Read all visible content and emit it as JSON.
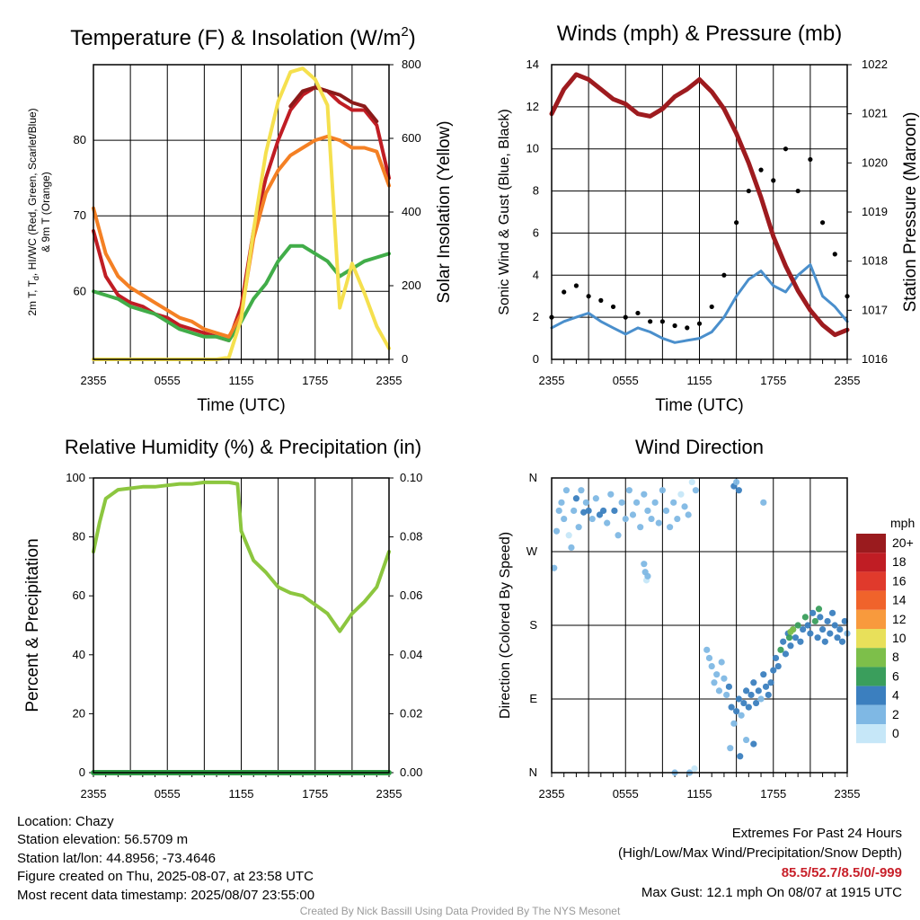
{
  "footer": "Created By Nick Bassill Using Data Provided By The NYS Mesonet",
  "info": {
    "location": "Location: Chazy",
    "elevation": "Station elevation: 56.5709 m",
    "latlon": "Station lat/lon: 44.8956; -73.4646",
    "created": "Figure created on Thu, 2025-08-07, at 23:58 UTC",
    "recent": "Most recent data timestamp: 2025/08/07 23:55:00"
  },
  "extremes": {
    "title": "Extremes For Past 24 Hours",
    "subtitle": "(High/Low/Max Wind/Precipitation/Snow Depth)",
    "values": "85.5/52.7/8.5/0/-999",
    "max_gust": "Max Gust: 12.1 mph On 08/07 at 1915 UTC"
  },
  "colors": {
    "temperature": "#c01d24",
    "heat_index": "#8b1a1a",
    "dewpoint": "#41ad49",
    "temp_9m": "#f48024",
    "insolation": "#f5e04e",
    "wind": "#4a8fcc",
    "gust": "#000000",
    "pressure": "#9e1b1f",
    "humidity": "#8cc63f",
    "precipitation": "#2e9a44"
  },
  "chart_data": [
    {
      "type": "line",
      "id": "temperature",
      "title": "Temperature (F) & Insolation (W/m",
      "title_sup": "2",
      "title_close": ")",
      "xlabel": "Time (UTC)",
      "ylabel_lines": [
        "2m T, T",
        "d",
        ", HI/WC (Red, Green, Scarlet/Blue)",
        "& 9m T (Orange)"
      ],
      "y2label": "Solar Insolation (Yellow)",
      "x_ticks": [
        "2355",
        "0555",
        "1155",
        "1755",
        "2355"
      ],
      "x_hours": [
        0,
        6,
        12,
        18,
        24
      ],
      "ylim": [
        51,
        90
      ],
      "y_ticks": [
        60,
        70,
        80
      ],
      "y2lim": [
        0,
        800
      ],
      "y2_ticks": [
        0,
        200,
        400,
        600,
        800
      ],
      "x": [
        0,
        1,
        2,
        3,
        4,
        5,
        6,
        7,
        8,
        9,
        10,
        11,
        12,
        13,
        14,
        15,
        16,
        17,
        18,
        19,
        20,
        21,
        22,
        23,
        24
      ],
      "series": [
        {
          "name": "2m T",
          "color": "temperature",
          "axis": "left",
          "values": [
            68,
            62,
            59.5,
            58.5,
            58,
            57,
            56.5,
            55.5,
            55,
            54.5,
            54,
            53.5,
            58,
            68,
            75,
            80,
            84,
            86,
            87,
            86.5,
            85,
            84,
            84,
            82,
            75
          ]
        },
        {
          "name": "HI/WC",
          "color": "heat_index",
          "axis": "left",
          "values": [
            null,
            null,
            null,
            null,
            null,
            null,
            null,
            null,
            null,
            null,
            null,
            null,
            null,
            null,
            null,
            null,
            84.5,
            86.5,
            87,
            86.5,
            86,
            85,
            84.5,
            82.5,
            null
          ]
        },
        {
          "name": "Td",
          "color": "dewpoint",
          "axis": "left",
          "values": [
            60,
            59.5,
            59,
            58,
            57.5,
            57,
            56,
            55,
            54.5,
            54,
            54,
            53.5,
            56,
            59,
            61,
            64,
            66,
            66,
            65,
            64,
            62,
            63,
            64,
            64.5,
            65
          ]
        },
        {
          "name": "9m T",
          "color": "temp_9m",
          "axis": "left",
          "values": [
            71,
            65,
            62,
            60.5,
            59.5,
            58.5,
            57.5,
            56.5,
            56,
            55,
            54.5,
            54,
            57,
            67,
            73,
            76,
            78,
            79,
            80,
            80.5,
            80,
            79,
            79,
            78.5,
            74
          ]
        },
        {
          "name": "Solar Insolation",
          "color": "insolation",
          "axis": "right",
          "values": [
            0,
            0,
            0,
            0,
            0,
            0,
            0,
            0,
            0,
            0,
            0,
            5,
            110,
            350,
            560,
            700,
            780,
            790,
            760,
            690,
            140,
            260,
            180,
            90,
            30
          ]
        }
      ]
    },
    {
      "type": "line",
      "id": "winds",
      "title": "Winds (mph) & Pressure (mb)",
      "xlabel": "Time (UTC)",
      "ylabel": "Sonic Wind & Gust (Blue, Black)",
      "y2label": "Station Pressure (Maroon)",
      "x_ticks": [
        "2355",
        "0555",
        "1155",
        "1755",
        "2355"
      ],
      "x_hours": [
        0,
        6,
        12,
        18,
        24
      ],
      "ylim": [
        0,
        14
      ],
      "y_ticks": [
        0,
        2,
        4,
        6,
        8,
        10,
        12,
        14
      ],
      "y2lim": [
        1016,
        1022
      ],
      "y2_ticks": [
        1016,
        1017,
        1018,
        1019,
        1020,
        1021,
        1022
      ],
      "x": [
        0,
        1,
        2,
        3,
        4,
        5,
        6,
        7,
        8,
        9,
        10,
        11,
        12,
        13,
        14,
        15,
        16,
        17,
        18,
        19,
        20,
        21,
        22,
        23,
        24
      ],
      "series": [
        {
          "name": "Sonic Wind",
          "color": "wind",
          "axis": "left",
          "style": "line",
          "values": [
            1.5,
            1.8,
            2,
            2.2,
            1.8,
            1.5,
            1.2,
            1.5,
            1.3,
            1.0,
            0.8,
            0.9,
            1.0,
            1.3,
            2.0,
            3.0,
            3.8,
            4.2,
            3.5,
            3.2,
            4.0,
            4.5,
            3.0,
            2.5,
            1.8
          ]
        },
        {
          "name": "Gust",
          "color": "gust",
          "axis": "left",
          "style": "dots",
          "values": [
            2,
            3.2,
            3.5,
            3.0,
            2.8,
            2.5,
            2.0,
            2.2,
            1.8,
            1.8,
            1.6,
            1.5,
            1.7,
            2.5,
            4.0,
            6.5,
            8.0,
            9.0,
            8.5,
            10.0,
            8.0,
            9.5,
            6.5,
            5.0,
            3.0
          ]
        },
        {
          "name": "Station Pressure",
          "color": "pressure",
          "axis": "right",
          "style": "line",
          "values": [
            1021.0,
            1021.5,
            1021.8,
            1021.7,
            1021.5,
            1021.3,
            1021.2,
            1021.0,
            1020.95,
            1021.1,
            1021.35,
            1021.5,
            1021.7,
            1021.45,
            1021.1,
            1020.6,
            1020.0,
            1019.3,
            1018.5,
            1017.9,
            1017.4,
            1017.0,
            1016.7,
            1016.5,
            1016.6
          ]
        }
      ]
    },
    {
      "type": "line",
      "id": "humidity",
      "title": "Relative Humidity (%) & Precipitation (in)",
      "ylabel": "Percent & Precipitation",
      "x_ticks": [
        "2355",
        "0555",
        "1155",
        "1755",
        "2355"
      ],
      "x_hours": [
        0,
        6,
        12,
        18,
        24
      ],
      "ylim": [
        0,
        100
      ],
      "y_ticks": [
        0,
        20,
        40,
        60,
        80,
        100
      ],
      "y2lim": [
        0,
        0.1
      ],
      "y2_ticks": [
        "0.00",
        "0.02",
        "0.04",
        "0.06",
        "0.08",
        "0.10"
      ],
      "x": [
        0,
        0.5,
        1,
        2,
        3,
        4,
        5,
        6,
        7,
        8,
        9,
        10,
        11,
        11.7,
        12,
        13,
        14,
        15,
        16,
        17,
        18,
        19,
        20,
        21,
        22,
        23,
        24
      ],
      "series": [
        {
          "name": "Relative Humidity",
          "color": "humidity",
          "axis": "left",
          "values": [
            75,
            85,
            93,
            96,
            96.5,
            97,
            97,
            97.5,
            98,
            98,
            98.5,
            98.5,
            98.5,
            98,
            82,
            72,
            68,
            63,
            61,
            60,
            57,
            54,
            48,
            54,
            58,
            63,
            75
          ]
        },
        {
          "name": "Precipitation",
          "color": "precipitation",
          "axis": "right",
          "values": [
            0,
            0,
            0,
            0,
            0,
            0,
            0,
            0,
            0,
            0,
            0,
            0,
            0,
            0,
            0,
            0,
            0,
            0,
            0,
            0,
            0,
            0,
            0,
            0,
            0,
            0,
            0
          ]
        }
      ]
    },
    {
      "type": "scatter",
      "id": "direction",
      "title": "Wind Direction",
      "ylabel": "Direction (Colored By Speed)",
      "x_ticks": [
        "2355",
        "0555",
        "1155",
        "1755",
        "2355"
      ],
      "x_hours": [
        0,
        6,
        12,
        18,
        24
      ],
      "y_ticks": [
        "N",
        "E",
        "S",
        "W",
        "N"
      ],
      "y_degrees": [
        0,
        90,
        180,
        270,
        360
      ],
      "legend_title": "mph",
      "legend_labels": [
        "20+",
        "18",
        "16",
        "14",
        "12",
        "10",
        "8",
        "6",
        "4",
        "2",
        "0"
      ],
      "legend_colors": [
        "#9a1b1e",
        "#c01d24",
        "#e03a2c",
        "#f0632b",
        "#f89a3d",
        "#e8e05a",
        "#7dbf4a",
        "#3a9e5c",
        "#3b7fbf",
        "#7fb8e4",
        "#c6e7f8"
      ],
      "points": [
        [
          0.2,
          250,
          1
        ],
        [
          0.4,
          295,
          2
        ],
        [
          0.6,
          320,
          1
        ],
        [
          0.8,
          330,
          2
        ],
        [
          1.0,
          310,
          1
        ],
        [
          1.2,
          345,
          2
        ],
        [
          1.4,
          290,
          0
        ],
        [
          1.6,
          275,
          2
        ],
        [
          1.8,
          320,
          2
        ],
        [
          2.0,
          335,
          3
        ],
        [
          2.2,
          300,
          1
        ],
        [
          2.4,
          345,
          2
        ],
        [
          2.6,
          318,
          3
        ],
        [
          2.8,
          330,
          2
        ],
        [
          3.0,
          320,
          3
        ],
        [
          3.3,
          310,
          2
        ],
        [
          3.6,
          335,
          2
        ],
        [
          3.9,
          315,
          3
        ],
        [
          4.2,
          320,
          3
        ],
        [
          4.5,
          305,
          2
        ],
        [
          4.8,
          340,
          2
        ],
        [
          5.1,
          320,
          3
        ],
        [
          5.4,
          290,
          1
        ],
        [
          5.7,
          330,
          2
        ],
        [
          6.0,
          310,
          1
        ],
        [
          6.3,
          345,
          1
        ],
        [
          6.6,
          315,
          2
        ],
        [
          6.9,
          330,
          1
        ],
        [
          7.2,
          300,
          1
        ],
        [
          7.5,
          340,
          1
        ],
        [
          7.8,
          320,
          2
        ],
        [
          8.1,
          310,
          1
        ],
        [
          8.4,
          330,
          2
        ],
        [
          8.7,
          305,
          1
        ],
        [
          9.0,
          345,
          1
        ],
        [
          9.3,
          320,
          1
        ],
        [
          9.6,
          300,
          1
        ],
        [
          9.9,
          330,
          1
        ],
        [
          10.2,
          310,
          1
        ],
        [
          10.5,
          340,
          0
        ],
        [
          10.8,
          325,
          1
        ],
        [
          11.1,
          315,
          1
        ],
        [
          11.4,
          355,
          0
        ],
        [
          11.7,
          345,
          1
        ],
        [
          7.5,
          255,
          1
        ],
        [
          7.6,
          245,
          1
        ],
        [
          7.7,
          235,
          0
        ],
        [
          7.8,
          240,
          1
        ],
        [
          12.6,
          150,
          1
        ],
        [
          12.8,
          140,
          2
        ],
        [
          13.0,
          130,
          2
        ],
        [
          13.2,
          110,
          1
        ],
        [
          13.4,
          120,
          2
        ],
        [
          13.6,
          100,
          2
        ],
        [
          13.8,
          135,
          1
        ],
        [
          14.0,
          115,
          2
        ],
        [
          14.2,
          95,
          2
        ],
        [
          14.4,
          105,
          3
        ],
        [
          14.6,
          80,
          3
        ],
        [
          14.8,
          60,
          2
        ],
        [
          15.0,
          75,
          3
        ],
        [
          15.2,
          90,
          3
        ],
        [
          15.4,
          70,
          2
        ],
        [
          15.6,
          85,
          4
        ],
        [
          15.8,
          100,
          3
        ],
        [
          16.0,
          80,
          4
        ],
        [
          16.2,
          95,
          4
        ],
        [
          16.4,
          110,
          3
        ],
        [
          16.6,
          85,
          3
        ],
        [
          16.8,
          100,
          3
        ],
        [
          17.0,
          90,
          2
        ],
        [
          17.2,
          120,
          3
        ],
        [
          17.4,
          105,
          3
        ],
        [
          17.6,
          95,
          4
        ],
        [
          17.8,
          110,
          3
        ],
        [
          18.0,
          125,
          4
        ],
        [
          18.2,
          140,
          3
        ],
        [
          18.4,
          130,
          4
        ],
        [
          18.6,
          150,
          5
        ],
        [
          18.8,
          160,
          4
        ],
        [
          19.0,
          145,
          4
        ],
        [
          19.2,
          170,
          3
        ],
        [
          19.4,
          155,
          4
        ],
        [
          19.6,
          175,
          3
        ],
        [
          19.8,
          165,
          4
        ],
        [
          20.0,
          180,
          5
        ],
        [
          20.2,
          160,
          3
        ],
        [
          20.4,
          175,
          4
        ],
        [
          20.6,
          190,
          5
        ],
        [
          20.8,
          180,
          4
        ],
        [
          21.0,
          170,
          3
        ],
        [
          21.2,
          195,
          4
        ],
        [
          21.4,
          185,
          5
        ],
        [
          21.6,
          165,
          4
        ],
        [
          21.8,
          190,
          3
        ],
        [
          22.0,
          175,
          4
        ],
        [
          22.2,
          160,
          3
        ],
        [
          22.4,
          185,
          4
        ],
        [
          22.6,
          170,
          3
        ],
        [
          22.8,
          195,
          4
        ],
        [
          23.0,
          180,
          3
        ],
        [
          23.2,
          165,
          3
        ],
        [
          23.4,
          175,
          4
        ],
        [
          23.6,
          160,
          3
        ],
        [
          23.8,
          185,
          3
        ],
        [
          24.0,
          170,
          2
        ],
        [
          14.8,
          350,
          3
        ],
        [
          15.0,
          355,
          2
        ],
        [
          15.2,
          345,
          3
        ],
        [
          17.2,
          330,
          2
        ],
        [
          10.0,
          0,
          1
        ],
        [
          11.2,
          0,
          1
        ],
        [
          11.6,
          5,
          0
        ],
        [
          15.3,
          20,
          3
        ],
        [
          14.5,
          30,
          2
        ],
        [
          15.8,
          40,
          2
        ],
        [
          16.4,
          35,
          3
        ],
        [
          19.3,
          165,
          6
        ],
        [
          19.6,
          175,
          7
        ],
        [
          19.4,
          172,
          8
        ],
        [
          21.7,
          200,
          6
        ]
      ]
    }
  ]
}
